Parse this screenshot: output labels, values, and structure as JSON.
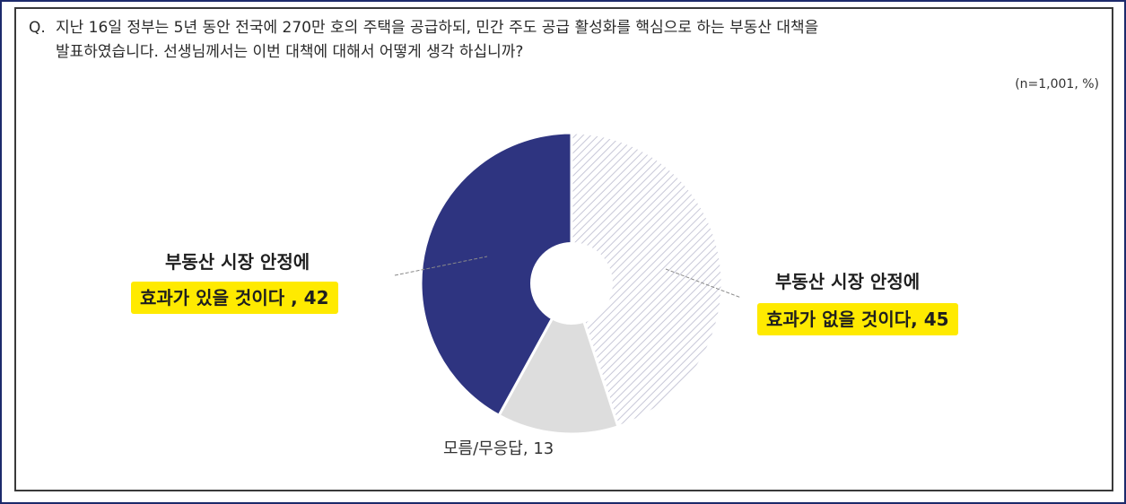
{
  "question": {
    "prefix": "Q.",
    "line1": "지난 16일 정부는 5년 동안 전국에 270만 호의 주택을 공급하되, 민간 주도 공급 활성화를 핵심으로 하는 부동산 대책을",
    "line2": "발표하였습니다. 선생님께서는 이번 대책에 대해서 어떻게 생각 하십니까?"
  },
  "sample_note": "(n=1,001,  %)",
  "colors": {
    "effective": "#2e3480",
    "not_effective": "#c8c8d8",
    "dont_know": "#dddddd",
    "highlight": "#ffea00"
  },
  "chart_data": {
    "type": "pie",
    "donut": true,
    "unit": "%",
    "slices": [
      {
        "label_line1": "부동산 시장 안정에",
        "label_line2": "효과가 없을 것이다",
        "value_text": "45",
        "value": 45
      },
      {
        "label": "모름/무응답",
        "value_text": "13",
        "value": 13
      },
      {
        "label_line1": "부동산 시장 안정에",
        "label_line2": "효과가 있을 것이다",
        "value_text": "42",
        "value": 42
      }
    ]
  }
}
